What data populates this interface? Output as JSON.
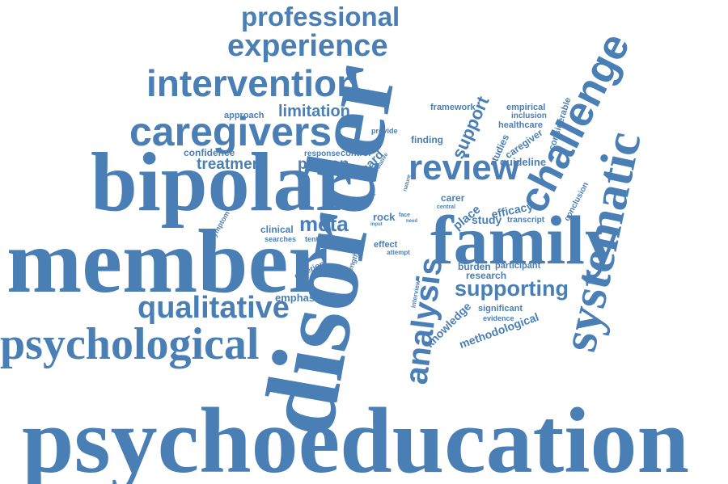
{
  "color": "#4a7fb5",
  "words": [
    "psychoeducation",
    "disorder",
    "member",
    "bipolar",
    "family",
    "psychological",
    "systematic",
    "caregivers",
    "challenge",
    "intervention",
    "experience",
    "professional",
    "qualitative",
    "review",
    "analysis",
    "supporting",
    "meta",
    "limitation",
    "treatment",
    "person",
    "support",
    "knowledge",
    "methodological",
    "emphasise",
    "confidence",
    "approach",
    "framework",
    "empirical",
    "inclusion",
    "healthcare",
    "considerable",
    "caregiver",
    "studies",
    "guideline",
    "finding",
    "provide",
    "response",
    "control",
    "hard",
    "relative",
    "part",
    "nature",
    "carer",
    "place",
    "efficacy",
    "study",
    "transcript",
    "conclusion",
    "clinical",
    "searches",
    "tentative",
    "rock",
    "face",
    "input",
    "need",
    "central",
    "effect",
    "attempt",
    "symptom",
    "criterion",
    "strength",
    "burden",
    "participant",
    "research",
    "interview",
    "significant",
    "evidence"
  ]
}
